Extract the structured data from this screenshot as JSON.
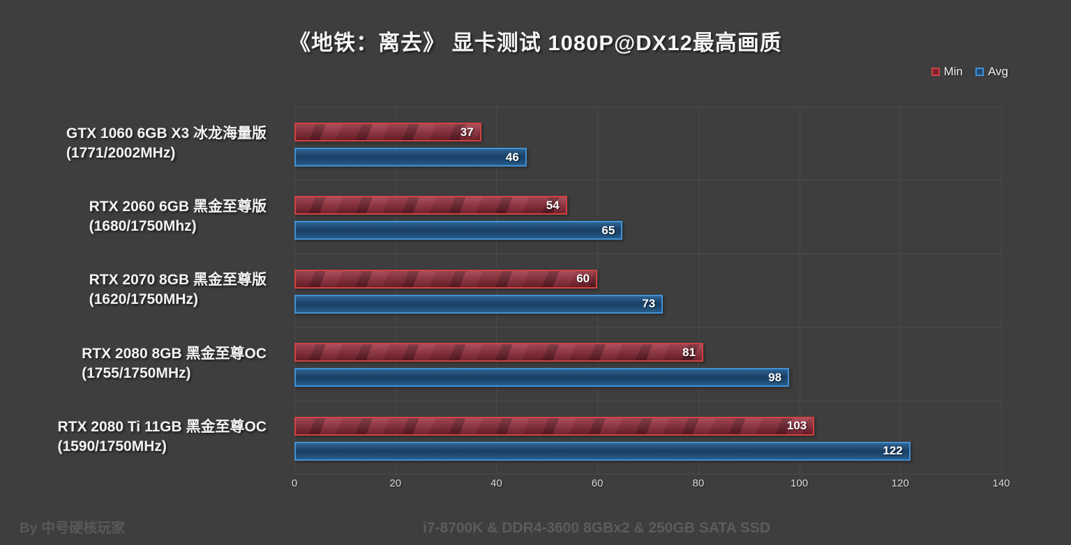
{
  "title": "《地铁：离去》 显卡测试 1080P@DX12最高画质",
  "legend": {
    "items": [
      {
        "label": "Min",
        "border": "#d04343",
        "fill": "#7e2230"
      },
      {
        "label": "Avg",
        "border": "#4292d6",
        "fill": "#1e4a72"
      }
    ]
  },
  "footer": {
    "author": "By 中号硬核玩家",
    "subtitle": "i7-8700K & DDR4-3600 8GBx2 & 250GB SATA SSD"
  },
  "chart_data": {
    "type": "bar",
    "orientation": "horizontal",
    "title": "《地铁：离去》 显卡测试 1080P@DX12最高画质",
    "categories": [
      {
        "model": "GTX 1060 6GB X3 冰龙海量版",
        "clock": "(1771/2002MHz)"
      },
      {
        "model": "RTX 2060 6GB 黑金至尊版",
        "clock": "(1680/1750Mhz)"
      },
      {
        "model": "RTX 2070 8GB 黑金至尊版",
        "clock": "(1620/1750MHz)"
      },
      {
        "model": "RTX 2080 8GB 黑金至尊OC",
        "clock": "(1755/1750MHz)"
      },
      {
        "model": "RTX 2080 Ti 11GB 黑金至尊OC",
        "clock": "(1590/1750MHz)"
      }
    ],
    "series": [
      {
        "name": "Min",
        "values": [
          37,
          54,
          60,
          81,
          103
        ]
      },
      {
        "name": "Avg",
        "values": [
          46,
          65,
          73,
          98,
          122
        ]
      }
    ],
    "xlabel": "",
    "ylabel": "",
    "xlim": [
      0,
      140
    ],
    "xticks": [
      0,
      20,
      40,
      60,
      80,
      100,
      120,
      140
    ],
    "grid": true,
    "legend_position": "top-right",
    "value_labels": "inside-end"
  }
}
